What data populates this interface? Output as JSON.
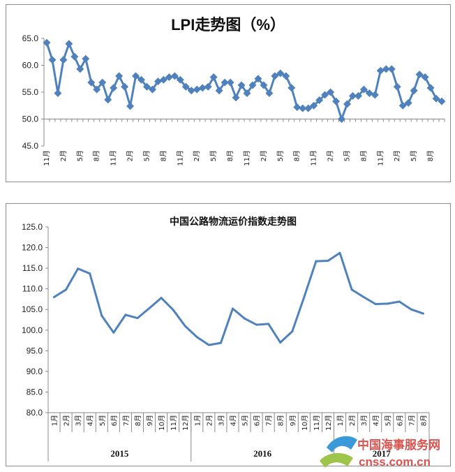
{
  "chart_data": [
    {
      "type": "line",
      "title": "LPI走势图（%）",
      "xlabel": "",
      "ylabel": "",
      "ylim": [
        45.0,
        65.0
      ],
      "yticks": [
        "65.0",
        "60.0",
        "55.0",
        "50.0",
        "45.0"
      ],
      "marker": "diamond",
      "grid": false,
      "series_color": "#4f81bd",
      "x_tick_labels": [
        "11月",
        "2月",
        "5月",
        "8月",
        "11月",
        "2月",
        "5月",
        "8月",
        "11月",
        "2月",
        "5月",
        "8月",
        "11月",
        "2月",
        "5月",
        "8月",
        "11月",
        "2月",
        "5月",
        "8月",
        "11月",
        "2月",
        "5月",
        "8月"
      ],
      "values": [
        64.2,
        61.0,
        54.8,
        61.0,
        64.0,
        61.6,
        59.3,
        61.2,
        56.8,
        55.5,
        56.8,
        53.6,
        55.8,
        58.0,
        56.0,
        52.4,
        58.0,
        57.3,
        56.0,
        55.5,
        57.0,
        57.3,
        57.8,
        58.0,
        57.3,
        56.0,
        55.3,
        55.5,
        55.8,
        56.0,
        57.8,
        55.3,
        56.8,
        56.8,
        54.0,
        56.3,
        54.8,
        56.3,
        57.5,
        56.3,
        54.8,
        58.0,
        58.5,
        58.0,
        55.8,
        52.2,
        52.0,
        52.0,
        52.5,
        53.5,
        54.5,
        55.0,
        53.3,
        50.0,
        52.8,
        54.3,
        54.3,
        55.5,
        54.8,
        54.5,
        59.0,
        59.3,
        59.3,
        56.0,
        52.5,
        53.0,
        55.3,
        58.3,
        57.8,
        55.8,
        53.8,
        53.3
      ]
    },
    {
      "type": "line",
      "title": "中国公路物流运价指数走势图",
      "xlabel": "",
      "ylabel": "",
      "ylim": [
        80.0,
        125.0
      ],
      "yticks": [
        "125.0",
        "120.0",
        "115.0",
        "110.0",
        "105.0",
        "100.0",
        "95.0",
        "90.0",
        "85.0",
        "80.0"
      ],
      "grid": false,
      "series_color": "#4f81bd",
      "categories": [
        "1月",
        "2月",
        "3月",
        "4月",
        "5月",
        "6月",
        "7月",
        "8月",
        "9月",
        "10月",
        "11月",
        "12月",
        "1月",
        "2月",
        "3月",
        "4月",
        "5月",
        "6月",
        "7月",
        "8月",
        "9月",
        "10月",
        "11月",
        "12月",
        "1月",
        "2月",
        "3月",
        "4月",
        "5月",
        "6月",
        "7月",
        "8月"
      ],
      "year_groups": [
        {
          "label": "2015",
          "count": 12
        },
        {
          "label": "2016",
          "count": 12
        },
        {
          "label": "2017",
          "count": 8
        }
      ],
      "values": [
        108.0,
        109.8,
        114.9,
        113.7,
        103.5,
        99.4,
        103.7,
        102.9,
        105.3,
        107.8,
        104.9,
        101.0,
        98.3,
        96.4,
        96.9,
        105.2,
        102.8,
        101.3,
        101.5,
        97.0,
        99.7,
        108.0,
        116.7,
        116.8,
        118.7,
        109.8,
        108.0,
        106.3,
        106.4,
        106.9,
        105.0,
        104.0
      ]
    }
  ],
  "watermark": {
    "zh": "中国海事服务网",
    "en": "cnss.com.cn",
    "color": "#d9534f"
  }
}
